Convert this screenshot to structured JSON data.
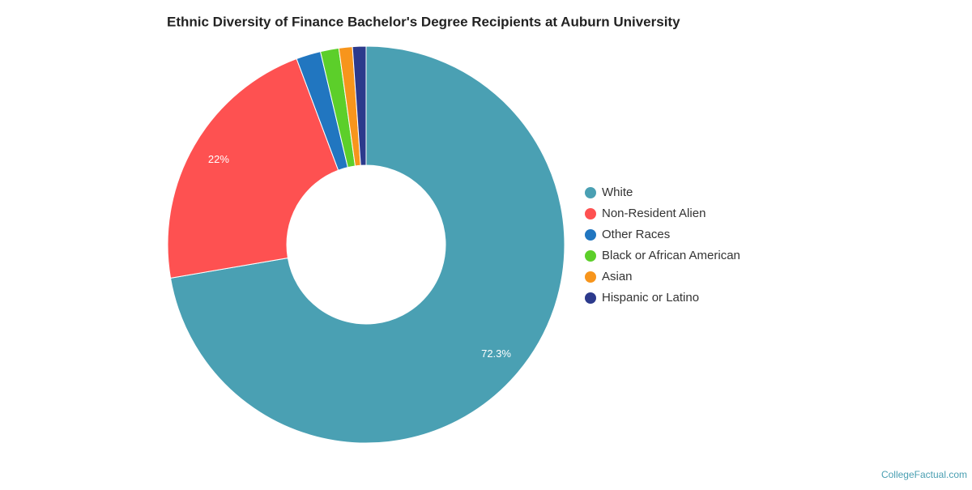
{
  "chart_data": {
    "type": "donut",
    "title": "Ethnic Diversity of Finance Bachelor's Degree Recipients at Auburn University",
    "categories": [
      "White",
      "Non-Resident Alien",
      "Other Races",
      "Black or African American",
      "Asian",
      "Hispanic or Latino"
    ],
    "values": [
      72.3,
      22,
      2.0,
      1.5,
      1.1,
      1.1
    ],
    "value_labels": [
      "72.3%",
      "22%",
      null,
      null,
      null,
      null
    ],
    "colors": [
      "#4aa0b3",
      "#fe5151",
      "#2176c0",
      "#5ccf2a",
      "#f7951c",
      "#2c3a8c"
    ],
    "legend": "right",
    "source": "CollegeFactual.com"
  }
}
